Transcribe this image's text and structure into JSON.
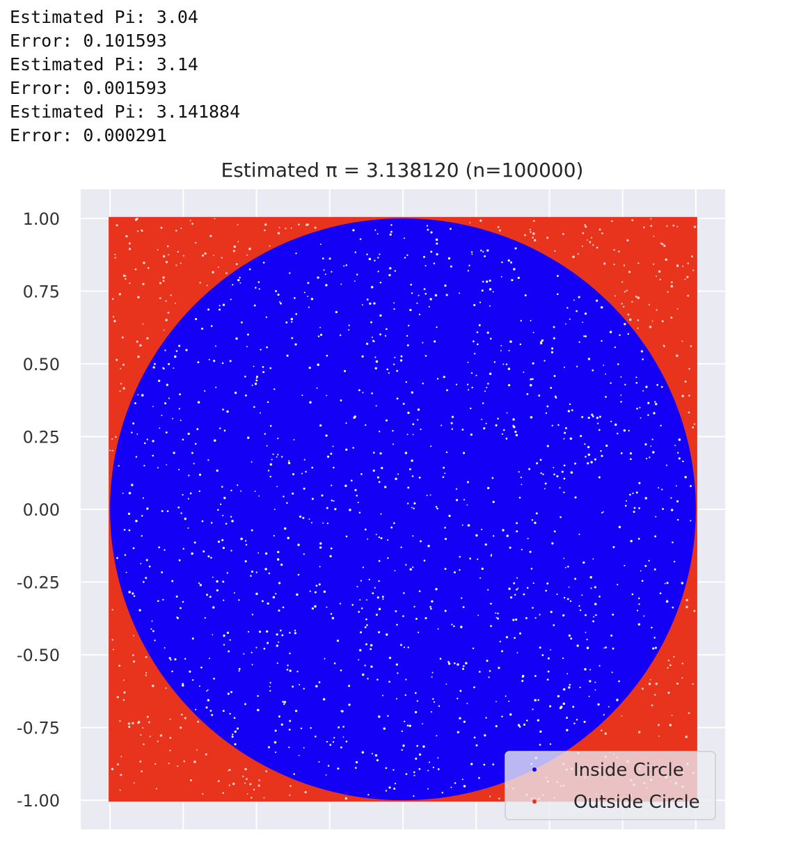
{
  "console": {
    "lines": [
      "Estimated Pi: 3.04",
      "Error: 0.101593",
      "Estimated Pi: 3.14",
      "Error: 0.001593",
      "Estimated Pi: 3.141884",
      "Error: 0.000291"
    ]
  },
  "chart_data": {
    "type": "scatter",
    "title": "Estimated π = 3.138120 (n=100000)",
    "xlim": [
      -1.1,
      1.1
    ],
    "ylim": [
      -1.1,
      1.1
    ],
    "x_ticks": [
      -1.0,
      -0.75,
      -0.5,
      -0.25,
      0.0,
      0.25,
      0.5,
      0.75,
      1.0
    ],
    "y_ticks": [
      -1.0,
      -0.75,
      -0.5,
      -0.25,
      0.0,
      0.25,
      0.5,
      0.75,
      1.0
    ],
    "y_tick_labels": [
      "-1.00",
      "-0.75",
      "-0.50",
      "-0.25",
      "0.00",
      "0.25",
      "0.50",
      "0.75",
      "1.00"
    ],
    "x_tick_labels_visible": false,
    "grid": true,
    "legend_position": "bottom-right",
    "n_points": 100000,
    "sample_region": {
      "x": [
        -1,
        1
      ],
      "y": [
        -1,
        1
      ]
    },
    "circle": {
      "center": [
        0,
        0
      ],
      "radius": 1
    },
    "series": [
      {
        "name": "Inside Circle",
        "color": "#1400f5",
        "condition": "x^2 + y^2 <= 1"
      },
      {
        "name": "Outside Circle",
        "color": "#e8341c",
        "condition": "x^2 + y^2 > 1"
      }
    ],
    "plot_background": "#eaeaf2"
  }
}
